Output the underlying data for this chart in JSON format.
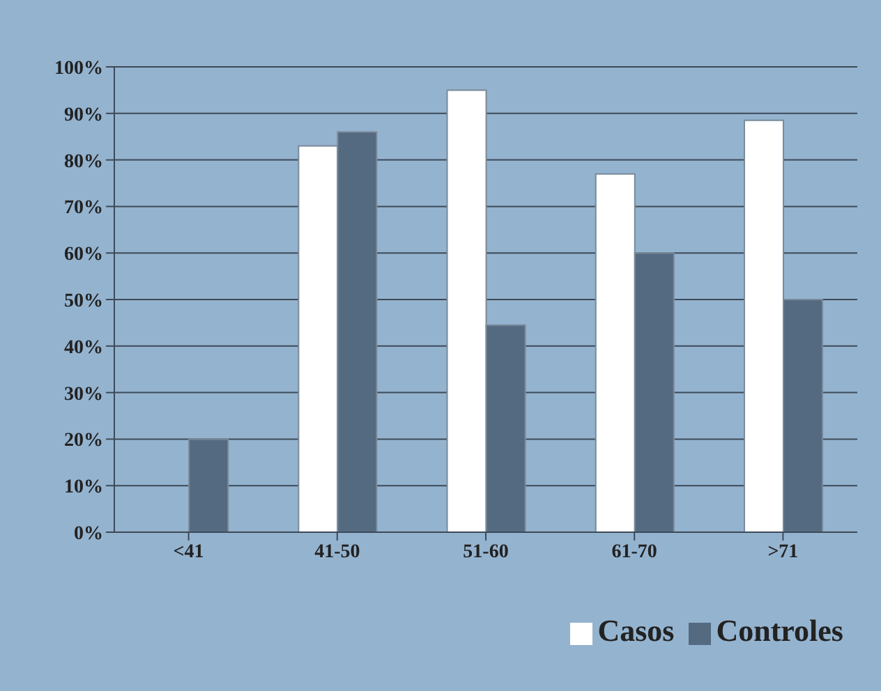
{
  "chart_data": {
    "type": "bar",
    "categories": [
      "<41",
      "41-50",
      "51-60",
      "61-70",
      ">71"
    ],
    "series": [
      {
        "name": "Casos",
        "color": "#ffffff",
        "values": [
          0,
          83,
          95,
          77,
          88.5
        ]
      },
      {
        "name": "Controles",
        "color": "#546a80",
        "values": [
          20,
          86,
          44.5,
          60,
          50
        ]
      }
    ],
    "ylim": [
      0,
      100
    ],
    "yticks": [
      {
        "value": 0,
        "label": "0%"
      },
      {
        "value": 10,
        "label": "10%"
      },
      {
        "value": 20,
        "label": "20%"
      },
      {
        "value": 30,
        "label": "30%"
      },
      {
        "value": 40,
        "label": "40%"
      },
      {
        "value": 50,
        "label": "50%"
      },
      {
        "value": 60,
        "label": "60%"
      },
      {
        "value": 70,
        "label": "70%"
      },
      {
        "value": 80,
        "label": "80%"
      },
      {
        "value": 90,
        "label": "90%"
      },
      {
        "value": 100,
        "label": "100%"
      }
    ],
    "grid": "y",
    "legend": "bottom right"
  }
}
